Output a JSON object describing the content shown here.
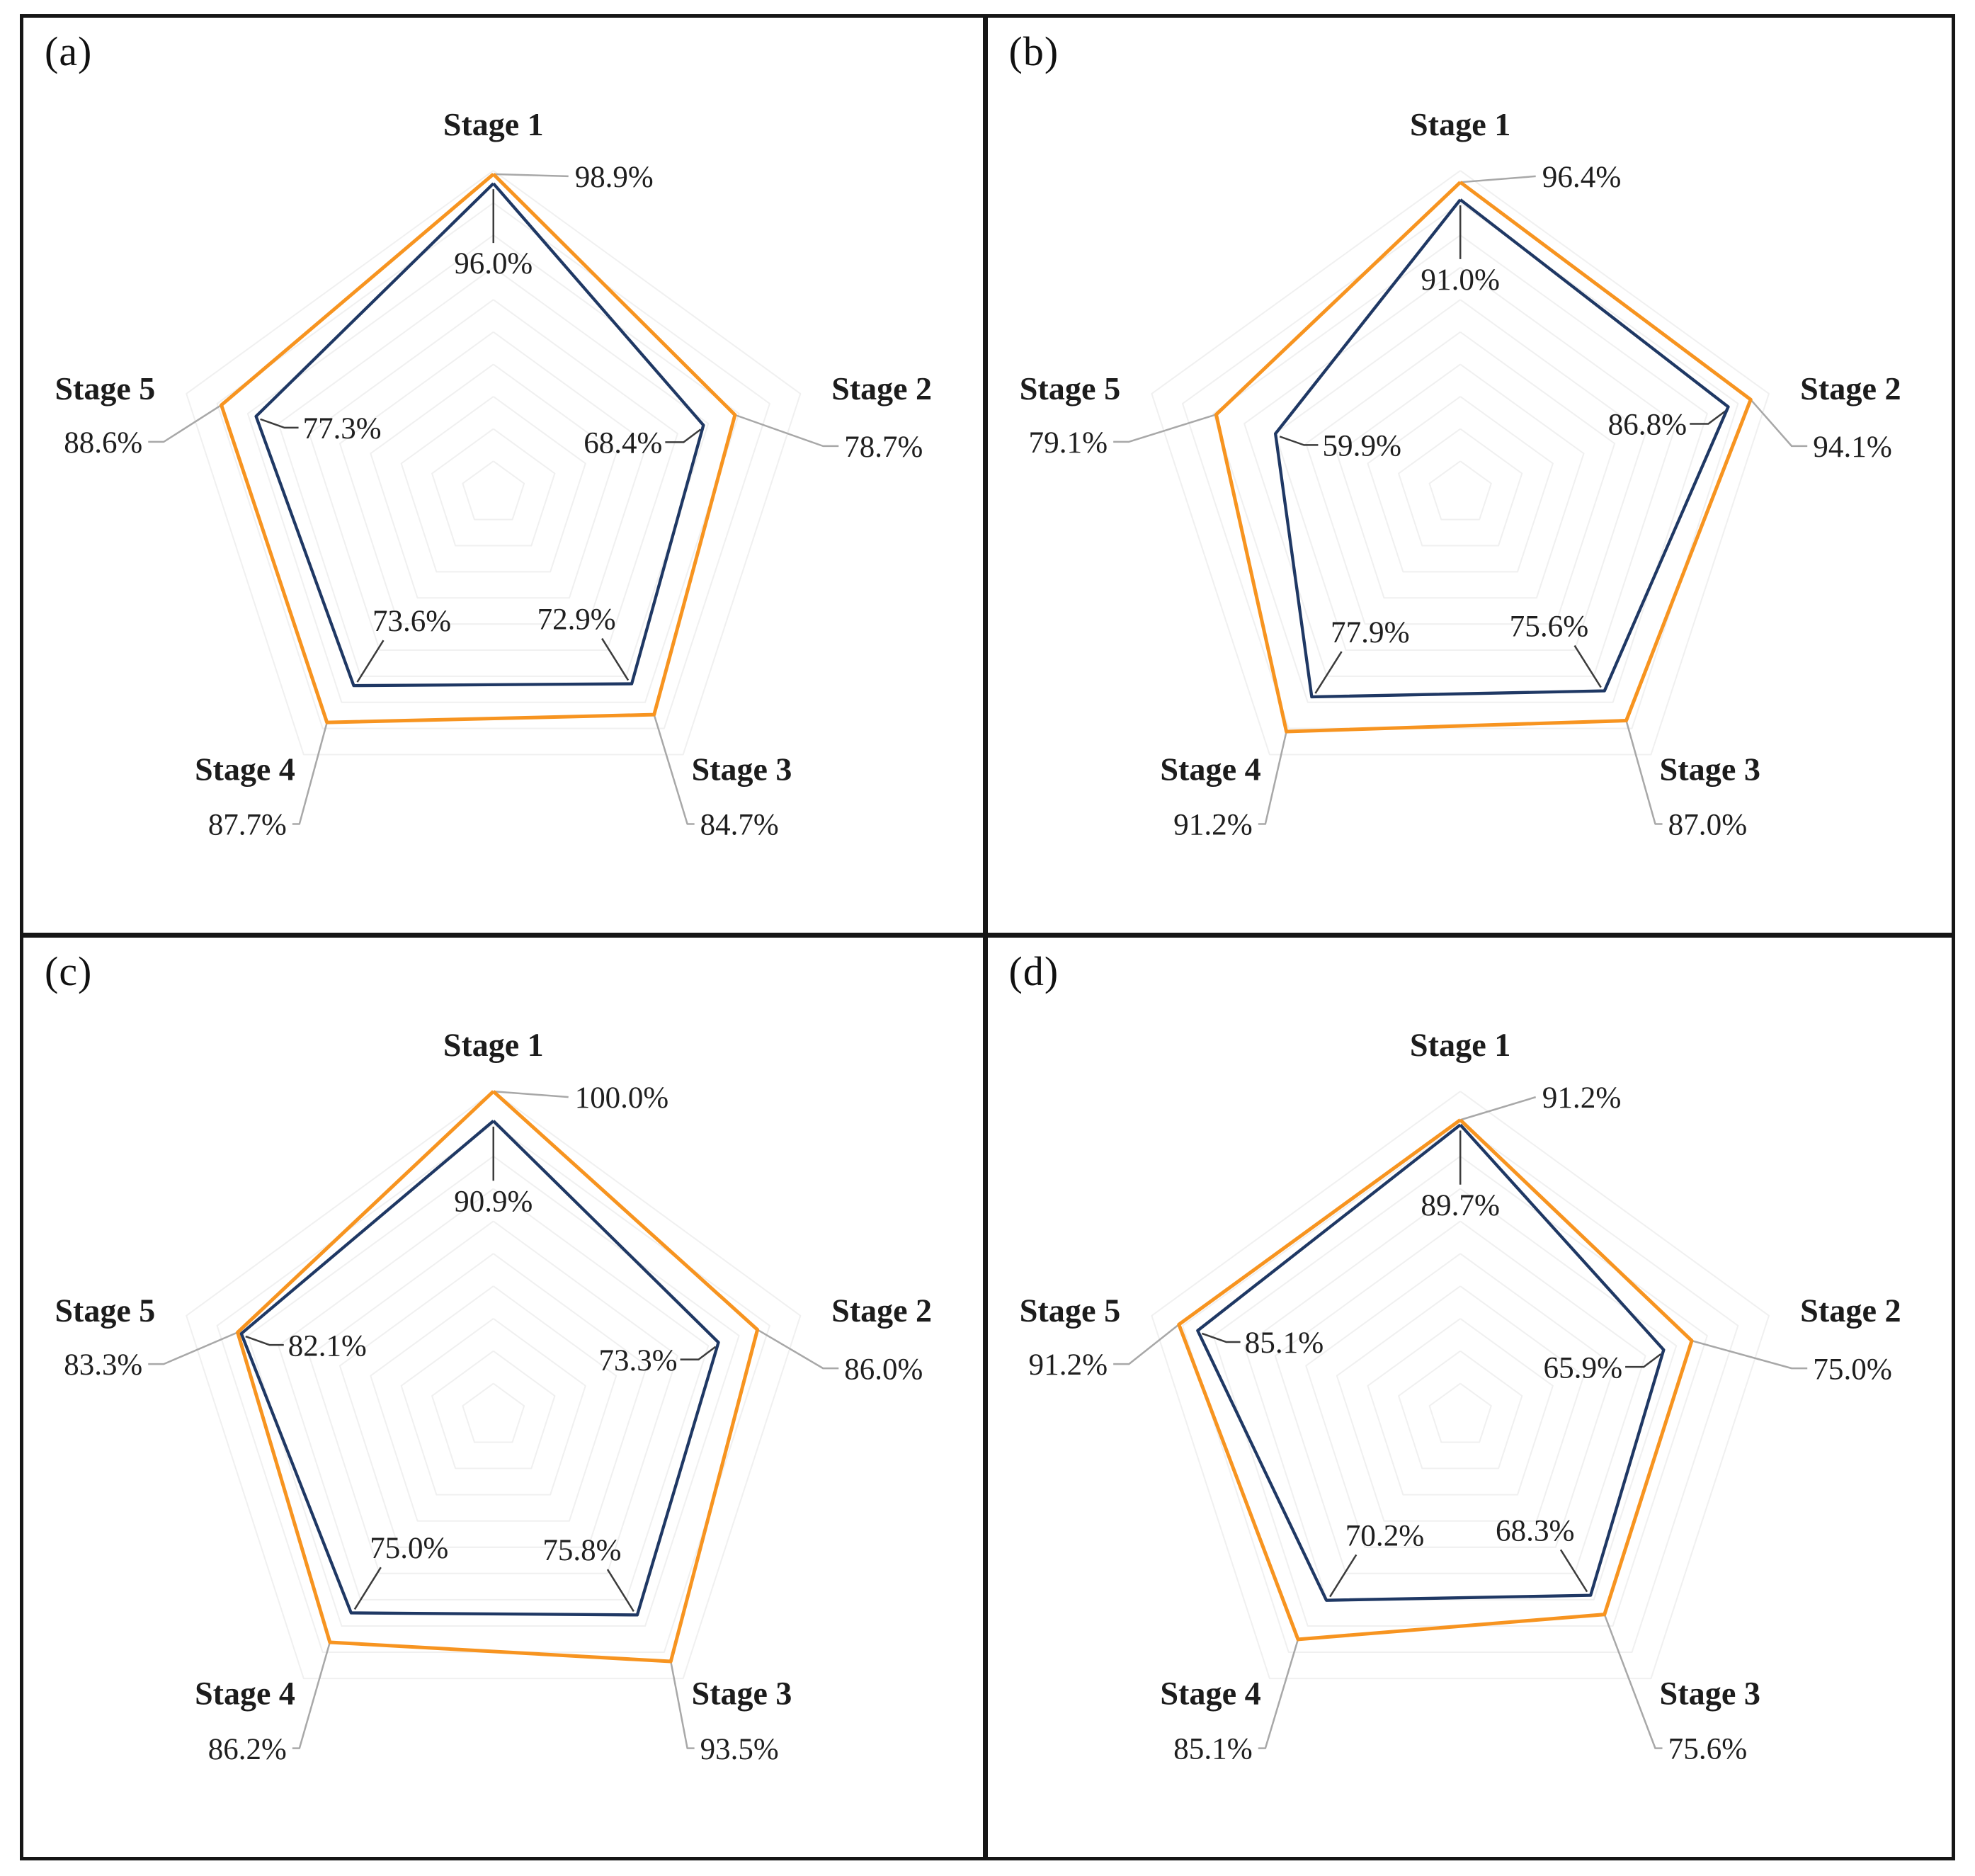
{
  "figure": {
    "categories": [
      "Stage 1",
      "Stage 2",
      "Stage 3",
      "Stage 4",
      "Stage 5"
    ],
    "panels": [
      {
        "label": "(a)",
        "series": [
          {
            "name": "orange",
            "color": "#F79420",
            "values": [
              98.9,
              78.7,
              84.7,
              87.7,
              88.6
            ]
          },
          {
            "name": "navy",
            "color": "#1F3864",
            "values": [
              96.0,
              68.4,
              72.9,
              73.6,
              77.3
            ]
          }
        ]
      },
      {
        "label": "(b)",
        "series": [
          {
            "name": "orange",
            "color": "#F79420",
            "values": [
              96.4,
              94.1,
              87.0,
              91.2,
              79.1
            ]
          },
          {
            "name": "navy",
            "color": "#1F3864",
            "values": [
              91.0,
              86.8,
              75.6,
              77.9,
              59.9
            ]
          }
        ]
      },
      {
        "label": "(c)",
        "series": [
          {
            "name": "orange",
            "color": "#F79420",
            "values": [
              100.0,
              86.0,
              93.5,
              86.2,
              83.3
            ]
          },
          {
            "name": "navy",
            "color": "#1F3864",
            "values": [
              90.9,
              73.3,
              75.8,
              75.0,
              82.1
            ]
          }
        ]
      },
      {
        "label": "(d)",
        "series": [
          {
            "name": "orange",
            "color": "#F79420",
            "values": [
              91.2,
              75.0,
              75.6,
              85.1,
              91.2
            ]
          },
          {
            "name": "navy",
            "color": "#1F3864",
            "values": [
              89.7,
              65.9,
              68.3,
              70.2,
              85.1
            ]
          }
        ]
      }
    ]
  },
  "styles": {
    "series_outer_color": "#F79420",
    "series_inner_color": "#1F3864",
    "grid_ring_color": "#F0F0F0",
    "leader_outer_color": "#A8A8A8",
    "leader_inner_color": "#3C3C3C",
    "text_color": "#1C1C1C",
    "border_color": "#161616",
    "background": "#FFFFFF"
  },
  "chart_data": [
    {
      "type": "radar",
      "panel": "(a)",
      "categories": [
        "Stage 1",
        "Stage 2",
        "Stage 3",
        "Stage 4",
        "Stage 5"
      ],
      "series": [
        {
          "name": "orange",
          "values": [
            98.9,
            78.7,
            84.7,
            87.7,
            88.6
          ]
        },
        {
          "name": "navy",
          "values": [
            96.0,
            68.4,
            72.9,
            73.6,
            77.3
          ]
        }
      ],
      "value_unit": "%",
      "rlim": [
        0,
        100
      ],
      "ring_interval": 10,
      "grid": true,
      "legend": "none"
    },
    {
      "type": "radar",
      "panel": "(b)",
      "categories": [
        "Stage 1",
        "Stage 2",
        "Stage 3",
        "Stage 4",
        "Stage 5"
      ],
      "series": [
        {
          "name": "orange",
          "values": [
            96.4,
            94.1,
            87.0,
            91.2,
            79.1
          ]
        },
        {
          "name": "navy",
          "values": [
            91.0,
            86.8,
            75.6,
            77.9,
            59.9
          ]
        }
      ],
      "value_unit": "%",
      "rlim": [
        0,
        100
      ],
      "ring_interval": 10,
      "grid": true,
      "legend": "none"
    },
    {
      "type": "radar",
      "panel": "(c)",
      "categories": [
        "Stage 1",
        "Stage 2",
        "Stage 3",
        "Stage 4",
        "Stage 5"
      ],
      "series": [
        {
          "name": "orange",
          "values": [
            100.0,
            86.0,
            93.5,
            86.2,
            83.3
          ]
        },
        {
          "name": "navy",
          "values": [
            90.9,
            73.3,
            75.8,
            75.0,
            82.1
          ]
        }
      ],
      "value_unit": "%",
      "rlim": [
        0,
        100
      ],
      "ring_interval": 10,
      "grid": true,
      "legend": "none"
    },
    {
      "type": "radar",
      "panel": "(d)",
      "categories": [
        "Stage 1",
        "Stage 2",
        "Stage 3",
        "Stage 4",
        "Stage 5"
      ],
      "series": [
        {
          "name": "orange",
          "values": [
            91.2,
            75.0,
            75.6,
            85.1,
            91.2
          ]
        },
        {
          "name": "navy",
          "values": [
            89.7,
            65.9,
            68.3,
            70.2,
            85.1
          ]
        }
      ],
      "value_unit": "%",
      "rlim": [
        0,
        100
      ],
      "ring_interval": 10,
      "grid": true,
      "legend": "none"
    }
  ]
}
